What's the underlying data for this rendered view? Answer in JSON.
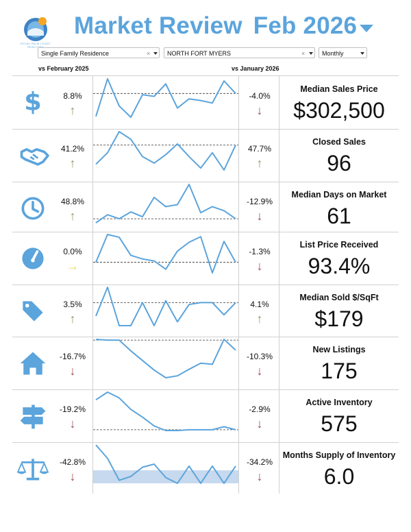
{
  "header": {
    "title": "Market Review",
    "period": "Feb 2026",
    "logo_text": "ROYAL PALM COAST REALTORS"
  },
  "filters": {
    "property_type": "Single Family Residence",
    "area": "NORTH FORT MYERS",
    "interval": "Monthly",
    "clear_symbol": "×"
  },
  "columns": {
    "yoy": "vs February 2025",
    "mom": "vs January 2026"
  },
  "colors": {
    "accent": "#5ba4dc",
    "up": "#8f9e6c",
    "down": "#9c4b55",
    "flat": "#e3d94d",
    "line": "#5ba4dc",
    "band": "#c7d9ee"
  },
  "metrics": [
    {
      "label": "Median Sales Price",
      "value": "$302,500",
      "yoy": "8.8%",
      "yoy_dir": "up",
      "mom": "-4.0%",
      "mom_dir": "down",
      "icon": "dollar-icon"
    },
    {
      "label": "Closed Sales",
      "value": "96",
      "yoy": "41.2%",
      "yoy_dir": "up",
      "mom": "47.7%",
      "mom_dir": "up",
      "icon": "handshake-icon"
    },
    {
      "label": "Median Days on Market",
      "value": "61",
      "yoy": "48.8%",
      "yoy_dir": "up",
      "mom": "-12.9%",
      "mom_dir": "down",
      "icon": "clock-icon"
    },
    {
      "label": "List Price Received",
      "value": "93.4%",
      "yoy": "0.0%",
      "yoy_dir": "flat",
      "mom": "-1.3%",
      "mom_dir": "down",
      "icon": "gauge-icon"
    },
    {
      "label": "Median Sold $/SqFt",
      "value": "$179",
      "yoy": "3.5%",
      "yoy_dir": "up",
      "mom": "4.1%",
      "mom_dir": "up",
      "icon": "price-tag-icon"
    },
    {
      "label": "New Listings",
      "value": "175",
      "yoy": "-16.7%",
      "yoy_dir": "down",
      "mom": "-10.3%",
      "mom_dir": "down",
      "icon": "house-icon"
    },
    {
      "label": "Active Inventory",
      "value": "575",
      "yoy": "-19.2%",
      "yoy_dir": "down",
      "mom": "-2.9%",
      "mom_dir": "down",
      "icon": "signpost-icon"
    },
    {
      "label": "Months Supply of Inventory",
      "value": "6.0",
      "yoy": "-42.8%",
      "yoy_dir": "down",
      "mom": "-34.2%",
      "mom_dir": "down",
      "icon": "balance-scale-icon"
    }
  ],
  "chart_data": [
    {
      "type": "line",
      "series": [
        {
          "values": [
            0.1,
            1.0,
            0.35,
            0.08,
            0.62,
            0.58,
            0.88,
            0.3,
            0.52,
            0.48,
            0.42,
            0.95,
            0.65
          ]
        }
      ],
      "reference": 0.65
    },
    {
      "type": "line",
      "series": [
        {
          "values": [
            0.15,
            0.45,
            1.0,
            0.8,
            0.35,
            0.18,
            0.4,
            0.68,
            0.35,
            0.05,
            0.45,
            0.0,
            0.65
          ]
        }
      ],
      "reference": 0.65
    },
    {
      "type": "line",
      "series": [
        {
          "values": [
            0.05,
            0.25,
            0.15,
            0.32,
            0.2,
            0.68,
            0.45,
            0.5,
            1.0,
            0.3,
            0.45,
            0.35,
            0.15
          ]
        }
      ],
      "reference": 0.15
    },
    {
      "type": "line",
      "series": [
        {
          "values": [
            0.0,
            1.0,
            0.9,
            0.25,
            0.12,
            0.05,
            -0.25,
            0.4,
            0.72,
            0.92,
            -0.38,
            0.75,
            0.0
          ]
        }
      ],
      "reference": 0.0
    },
    {
      "type": "line",
      "series": [
        {
          "values": [
            0.25,
            1.0,
            0.0,
            0.0,
            0.6,
            0.0,
            0.65,
            0.1,
            0.55,
            0.6,
            0.6,
            0.28,
            0.6
          ]
        }
      ],
      "reference": 0.6
    },
    {
      "type": "line",
      "series": [
        {
          "values": [
            1.0,
            0.98,
            0.98,
            0.7,
            0.45,
            0.2,
            0.0,
            0.05,
            0.22,
            0.38,
            0.35,
            1.0,
            0.72
          ]
        }
      ],
      "reference": 0.98
    },
    {
      "type": "line",
      "series": [
        {
          "values": [
            0.8,
            1.0,
            0.85,
            0.55,
            0.35,
            0.12,
            0.0,
            0.0,
            0.02,
            0.02,
            0.02,
            0.1,
            0.02
          ]
        }
      ],
      "reference": 0.02
    },
    {
      "type": "line",
      "series": [
        {
          "values": [
            1.0,
            0.65,
            0.08,
            0.18,
            0.42,
            0.5,
            0.15,
            0.0,
            0.45,
            0.0,
            0.45,
            0.0,
            0.45
          ]
        }
      ],
      "band": [
        0.0,
        0.34
      ]
    }
  ]
}
